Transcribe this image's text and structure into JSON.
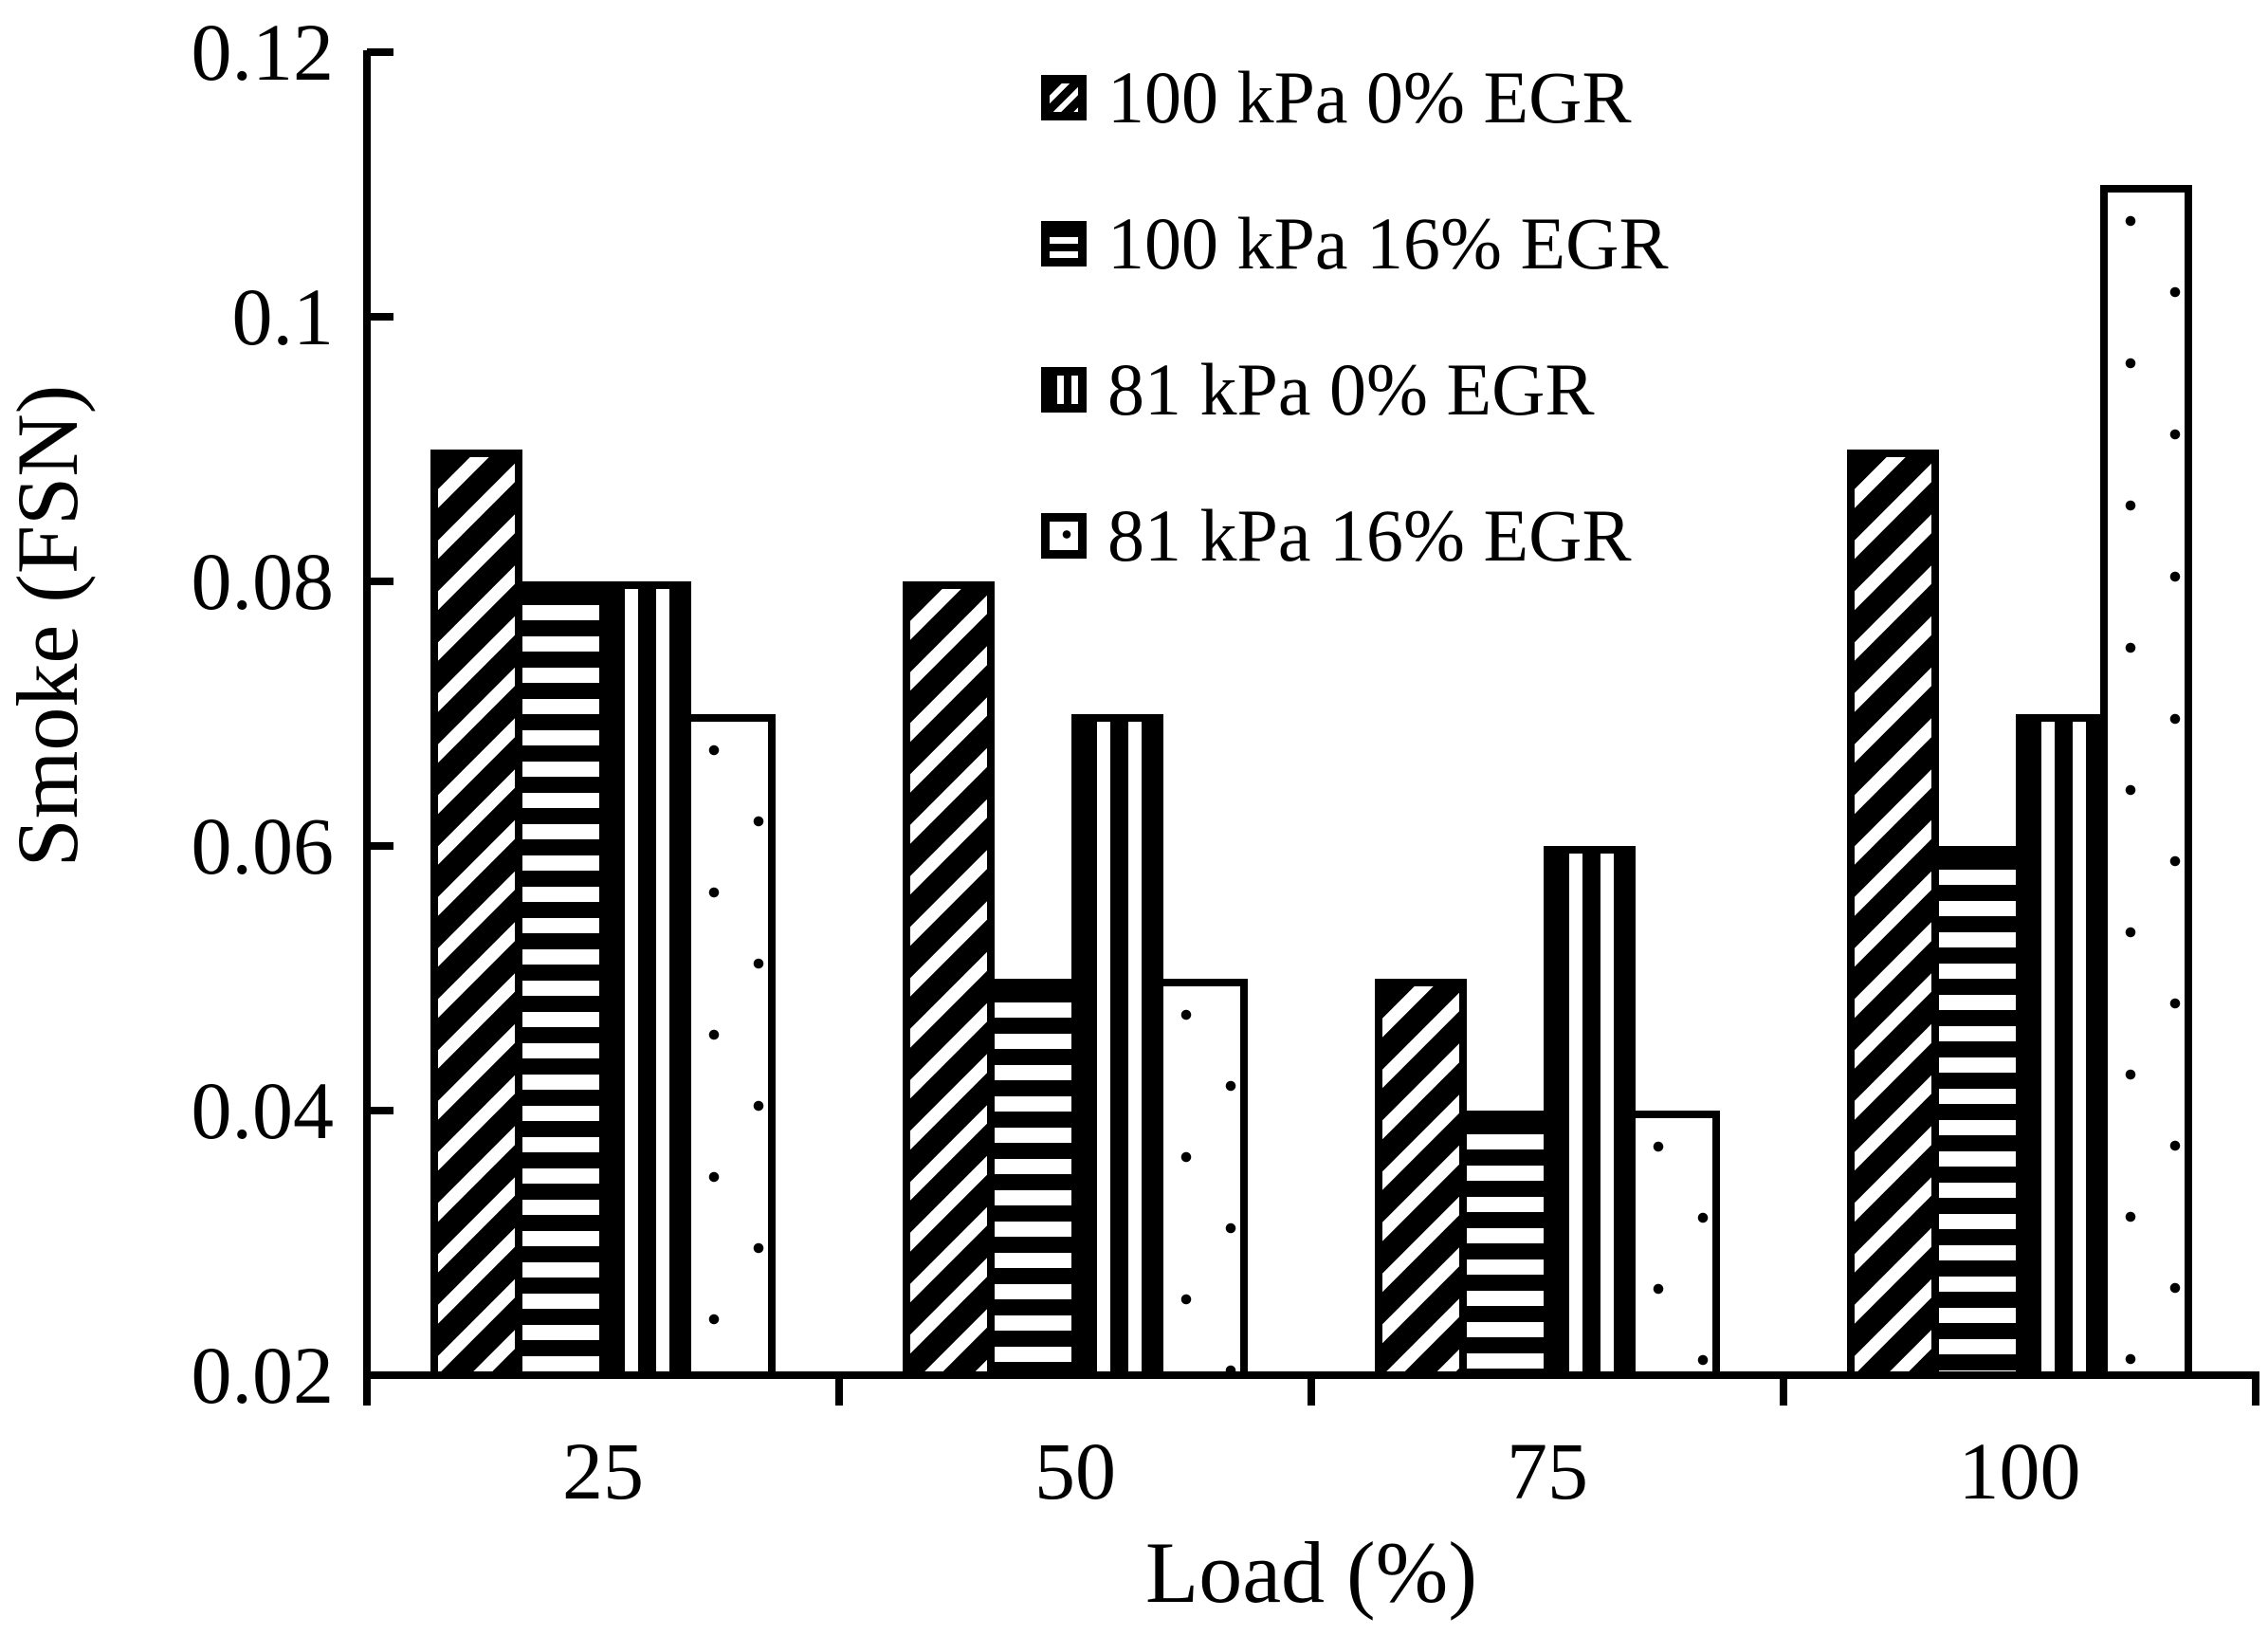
{
  "chart_data": {
    "type": "bar",
    "title": "",
    "xlabel": "Load (%)",
    "ylabel": "Smoke (FSN)",
    "categories": [
      "25",
      "50",
      "75",
      "100"
    ],
    "series": [
      {
        "name": "100 kPa 0% EGR",
        "pattern": "diagonal-stripes",
        "values": [
          0.09,
          0.08,
          0.05,
          0.09
        ]
      },
      {
        "name": "100 kPa 16% EGR",
        "pattern": "horizontal-stripes",
        "values": [
          0.08,
          0.05,
          0.04,
          0.06
        ]
      },
      {
        "name": "81 kPa 0% EGR",
        "pattern": "vertical-stripes",
        "values": [
          0.08,
          0.07,
          0.06,
          0.07
        ]
      },
      {
        "name": "81 kPa 16% EGR",
        "pattern": "dots",
        "values": [
          0.07,
          0.05,
          0.04,
          0.11
        ]
      }
    ],
    "ylim": [
      0.02,
      0.12
    ],
    "ytick_step": 0.02,
    "yticks": [
      {
        "label": "0.02",
        "value": 0.02
      },
      {
        "label": "0.04",
        "value": 0.04
      },
      {
        "label": "0.06",
        "value": 0.06
      },
      {
        "label": "0.08",
        "value": 0.08
      },
      {
        "label": "0.1",
        "value": 0.1
      },
      {
        "label": "0.12",
        "value": 0.12
      }
    ],
    "grid": false,
    "legend_position": "top-right-inside",
    "colors": {
      "foreground": "#000000",
      "background": "#ffffff"
    }
  }
}
